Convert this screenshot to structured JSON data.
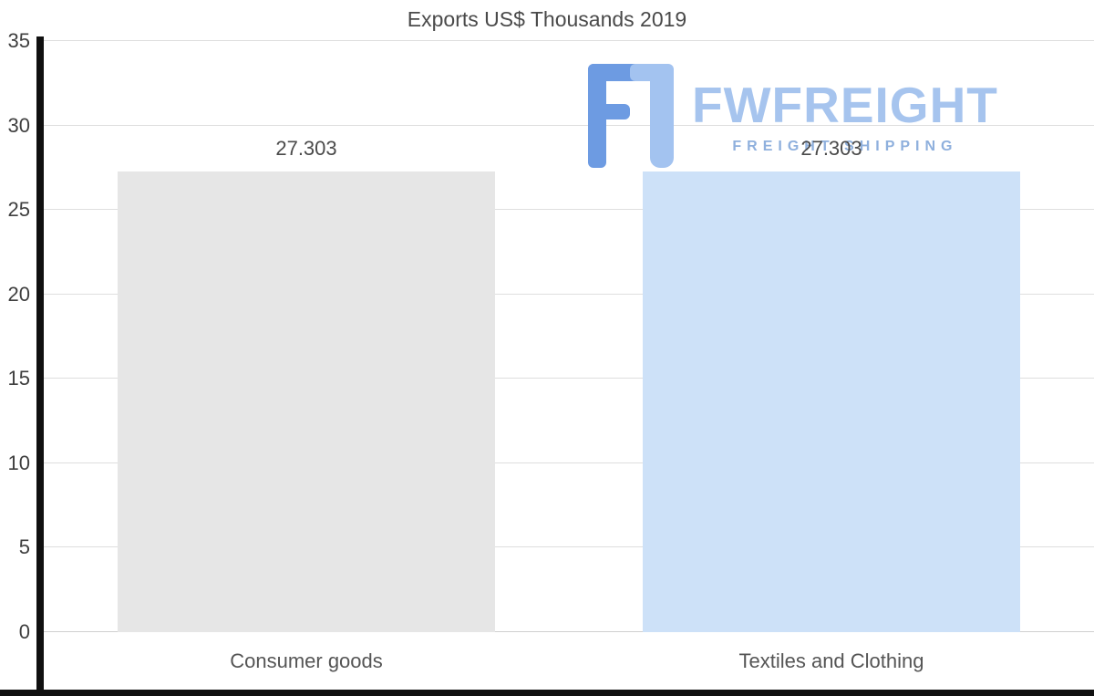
{
  "title": "Exports US$ Thousands 2019",
  "chart_data": {
    "type": "bar",
    "title": "Exports US$ Thousands 2019",
    "categories": [
      "Consumer goods",
      "Textiles and Clothing"
    ],
    "values": [
      27.303,
      27.303
    ],
    "value_labels": [
      "27.303",
      "27.303"
    ],
    "bar_colors": [
      "#e6e6e6",
      "#cde1f8"
    ],
    "ylim": [
      0,
      35
    ],
    "yticks": [
      35,
      30,
      25,
      20,
      15,
      10,
      5,
      0
    ],
    "grid": true,
    "legend_position": "none",
    "xlabel": "",
    "ylabel": ""
  },
  "watermark": {
    "brand": "FWFREIGHT",
    "tagline": "FREIGHT SHIPPING",
    "brand_color": "#a6c4ee",
    "tagline_color": "#8fb0dd",
    "icon": "fwfreight-logo-icon",
    "icon_color_primary": "#6d9be2",
    "icon_color_secondary": "#a3c3f0"
  },
  "colors": {
    "axis": "#101010",
    "grid": "#dedede",
    "text": "#4a4a4a",
    "background": "#ffffff"
  }
}
